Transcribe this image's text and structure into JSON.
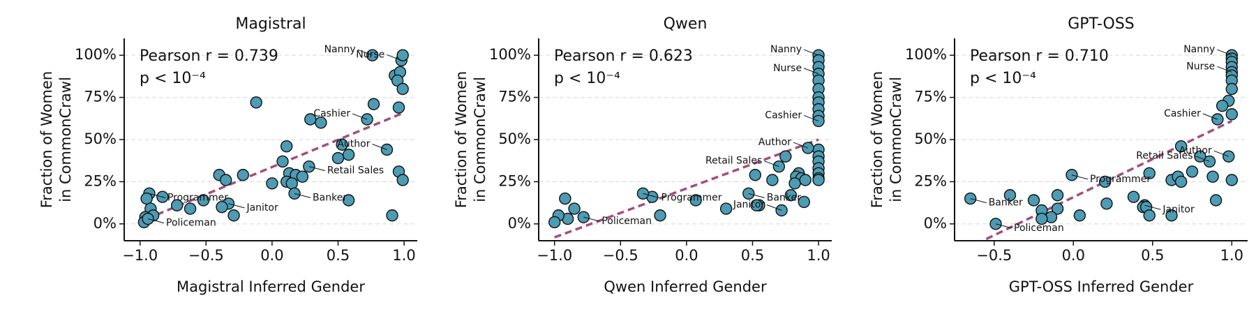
{
  "chart_data": [
    {
      "type": "scatter",
      "title": "Magistral",
      "xlabel": "Magistral Inferred Gender",
      "ylabel": [
        "Fraction of Women",
        "in CommonCrawl"
      ],
      "stat_lines": [
        "Pearson r = 0.739",
        "p < 10⁻⁴"
      ],
      "color": "#4b9cb4",
      "fit_color": "#a64d79",
      "xlim": [
        -1.12,
        1.1
      ],
      "ylim": [
        -10,
        110
      ],
      "xticks": [
        {
          "value": -1,
          "label": "−1.0"
        },
        {
          "value": -0.5,
          "label": "−0.5"
        },
        {
          "value": 0,
          "label": "0.0"
        },
        {
          "value": 0.5,
          "label": "0.5"
        },
        {
          "value": 1,
          "label": "1.0"
        }
      ],
      "yticks": [
        {
          "value": 0,
          "label": "0%"
        },
        {
          "value": 25,
          "label": "25%"
        },
        {
          "value": 50,
          "label": "50%"
        },
        {
          "value": 75,
          "label": "75%"
        },
        {
          "value": 100,
          "label": "100%"
        }
      ],
      "grid": true,
      "x": [
        0.76,
        0.98,
        0.99,
        0.93,
        0.97,
        0.95,
        0.99,
        -0.12,
        0.77,
        0.96,
        0.72,
        0.29,
        0.37,
        0.11,
        0.53,
        0.87,
        0.58,
        0.5,
        0.08,
        0.28,
        0.13,
        0.18,
        0.23,
        0.11,
        0.15,
        0.0,
        0.96,
        0.99,
        0.58,
        0.91,
        0.17,
        -0.4,
        -0.22,
        -0.35,
        -0.52,
        -0.62,
        -0.72,
        -0.83,
        -0.93,
        -0.95,
        -0.92,
        -0.9,
        -0.96,
        -0.97,
        -0.33,
        -0.38,
        -0.29,
        -0.94
      ],
      "y": [
        100,
        97,
        100,
        88,
        90,
        85,
        80,
        72,
        71,
        69,
        62,
        62,
        60,
        46,
        47,
        44,
        41,
        39,
        37,
        34,
        30,
        29,
        28,
        25,
        24,
        24,
        31,
        26,
        14,
        5,
        18,
        29,
        29,
        26,
        14,
        9,
        11,
        16,
        18,
        15,
        9,
        5,
        4,
        1,
        12,
        10,
        5,
        3
      ],
      "point_labels": [
        "Nanny",
        "Nurse",
        null,
        null,
        null,
        null,
        null,
        null,
        null,
        null,
        "Cashier",
        null,
        null,
        null,
        null,
        "Author",
        null,
        null,
        null,
        "Retail Sales",
        null,
        null,
        null,
        null,
        null,
        null,
        null,
        null,
        null,
        null,
        "Banker",
        null,
        null,
        null,
        null,
        null,
        null,
        null,
        "Programmer",
        null,
        null,
        null,
        null,
        null,
        "Janitor",
        null,
        null,
        "Policeman"
      ],
      "fit": {
        "x": [
          -0.95,
          1.0
        ],
        "y": [
          3,
          66
        ]
      }
    },
    {
      "type": "scatter",
      "title": "Qwen",
      "xlabel": "Qwen Inferred Gender",
      "ylabel": [
        "Fraction of Women",
        "in CommonCrawl"
      ],
      "stat_lines": [
        "Pearson r = 0.623",
        "p < 10⁻⁴"
      ],
      "color": "#4b9cb4",
      "fit_color": "#a64d79",
      "xlim": [
        -1.12,
        1.1
      ],
      "ylim": [
        -10,
        110
      ],
      "xticks": [
        {
          "value": -1,
          "label": "−1.0"
        },
        {
          "value": -0.5,
          "label": "−0.5"
        },
        {
          "value": 0,
          "label": "0.0"
        },
        {
          "value": 0.5,
          "label": "0.5"
        },
        {
          "value": 1,
          "label": "1.0"
        }
      ],
      "yticks": [
        {
          "value": 0,
          "label": "0%"
        },
        {
          "value": 25,
          "label": "25%"
        },
        {
          "value": 50,
          "label": "50%"
        },
        {
          "value": 75,
          "label": "75%"
        },
        {
          "value": 100,
          "label": "100%"
        }
      ],
      "grid": true,
      "x": [
        1,
        1,
        1,
        1,
        1,
        1,
        1,
        1,
        1,
        1,
        1,
        1,
        1,
        1,
        1,
        1,
        1,
        1,
        0.92,
        0.75,
        0.7,
        0.52,
        0.85,
        0.83,
        0.87,
        0.82,
        0.9,
        0.65,
        0.47,
        0.55,
        0.53,
        0.72,
        0.89,
        0.79,
        0.3,
        0.07,
        -0.2,
        -0.26,
        -0.33,
        -0.85,
        -0.92,
        -0.9,
        -0.97,
        -1.0,
        -0.78
      ],
      "y": [
        100,
        97,
        93,
        89,
        85,
        80,
        75,
        72,
        68,
        64,
        61,
        44,
        40,
        37,
        33,
        30,
        27,
        26,
        45,
        40,
        34,
        29,
        30,
        28,
        27,
        24,
        26,
        26,
        18,
        11,
        11,
        8,
        13,
        17,
        9,
        14,
        5,
        16,
        18,
        9,
        15,
        3,
        5,
        1,
        4
      ],
      "point_labels": [
        "Nanny",
        null,
        null,
        "Nurse",
        null,
        null,
        null,
        null,
        null,
        null,
        "Cashier",
        null,
        null,
        null,
        null,
        null,
        null,
        null,
        "Author",
        null,
        "Retail Sales",
        null,
        null,
        null,
        null,
        null,
        null,
        null,
        "Banker",
        null,
        null,
        "Janitor",
        null,
        null,
        null,
        null,
        null,
        null,
        "Programmer",
        null,
        null,
        null,
        null,
        null,
        "Policeman"
      ],
      "fit": {
        "x": [
          -1.0,
          1.0
        ],
        "y": [
          -8,
          50
        ]
      }
    },
    {
      "type": "scatter",
      "title": "GPT-OSS",
      "xlabel": "GPT-OSS Inferred Gender",
      "ylabel": [
        "Fraction of Women",
        "in CommonCrawl"
      ],
      "stat_lines": [
        "Pearson r = 0.710",
        "p < 10⁻⁴"
      ],
      "color": "#4b9cb4",
      "fit_color": "#a64d79",
      "xlim": [
        -0.75,
        1.1
      ],
      "ylim": [
        -10,
        110
      ],
      "xticks": [
        {
          "value": -0.5,
          "label": "−0.5"
        },
        {
          "value": 0,
          "label": "0.0"
        },
        {
          "value": 0.5,
          "label": "0.5"
        },
        {
          "value": 1,
          "label": "1.0"
        }
      ],
      "yticks": [
        {
          "value": 0,
          "label": "0%"
        },
        {
          "value": 25,
          "label": "25%"
        },
        {
          "value": 50,
          "label": "50%"
        },
        {
          "value": 75,
          "label": "75%"
        },
        {
          "value": 100,
          "label": "100%"
        }
      ],
      "grid": true,
      "x": [
        1,
        1,
        1,
        1,
        1,
        1,
        1,
        1,
        0.98,
        0.94,
        0.91,
        1,
        0.68,
        0.98,
        0.8,
        0.86,
        0.75,
        0.88,
        0.62,
        0.66,
        0.68,
        1,
        0.9,
        0.48,
        0.38,
        0.45,
        0.44,
        0.46,
        0.62,
        0.48,
        -0.01,
        0.2,
        0.21,
        -0.1,
        0.04,
        -0.1,
        -0.14,
        -0.2,
        -0.2,
        -0.4,
        -0.65,
        -0.25,
        -0.49
      ],
      "y": [
        100,
        98,
        96,
        93,
        90,
        88,
        85,
        80,
        73,
        70,
        62,
        65,
        46,
        40,
        40,
        37,
        31,
        28,
        26,
        28,
        25,
        26,
        14,
        30,
        16,
        11,
        10,
        10,
        5,
        5,
        29,
        25,
        12,
        17,
        5,
        9,
        4,
        8,
        3,
        17,
        15,
        14,
        0
      ],
      "point_labels": [
        "Nanny",
        null,
        null,
        null,
        "Nurse",
        null,
        null,
        null,
        null,
        null,
        "Cashier",
        null,
        null,
        "Author",
        null,
        "Retail Sales",
        null,
        null,
        null,
        null,
        null,
        null,
        null,
        null,
        null,
        "Janitor",
        null,
        null,
        null,
        null,
        "Programmer",
        null,
        null,
        null,
        null,
        null,
        null,
        null,
        null,
        null,
        "Banker",
        null,
        "Policeman"
      ],
      "fit": {
        "x": [
          -0.55,
          1.0
        ],
        "y": [
          -9,
          61
        ]
      }
    }
  ]
}
